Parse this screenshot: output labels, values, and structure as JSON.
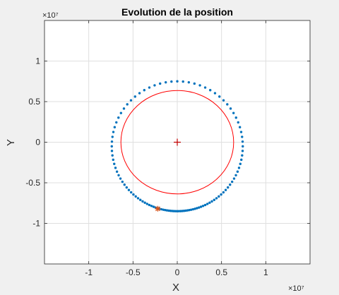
{
  "chart_data": {
    "type": "scatter",
    "title": "Evolution de la position",
    "xlabel": "X",
    "ylabel": "Y",
    "x_exponent": "×10⁷",
    "y_exponent": "×10⁷",
    "xlim": [
      -1.5,
      1.5
    ],
    "ylim": [
      -1.5,
      1.5
    ],
    "xticks": [
      -1,
      -0.5,
      0,
      0.5,
      1
    ],
    "xtick_labels": [
      "-1",
      "-0.5",
      "0",
      "0.5",
      "1"
    ],
    "yticks": [
      -1,
      -0.5,
      0,
      0.5,
      1
    ],
    "ytick_labels": [
      "-1",
      "-0.5",
      "0",
      "0.5",
      "1"
    ],
    "grid": true,
    "series": [
      {
        "kind": "orbit-dots",
        "color": "#0072bd",
        "ellipse_center": [
          0,
          -0.05
        ],
        "ellipse_semi_axes": [
          0.74,
          0.8
        ],
        "point_count": 110
      },
      {
        "kind": "earth-circle",
        "color": "#ff0000",
        "center": [
          0,
          0
        ],
        "radius": 0.637
      },
      {
        "kind": "center-marker",
        "color": "#c00000",
        "point": [
          0,
          0
        ]
      },
      {
        "kind": "current-position-marker",
        "color": "#d95319",
        "point": [
          -0.22,
          -0.82
        ]
      }
    ]
  }
}
